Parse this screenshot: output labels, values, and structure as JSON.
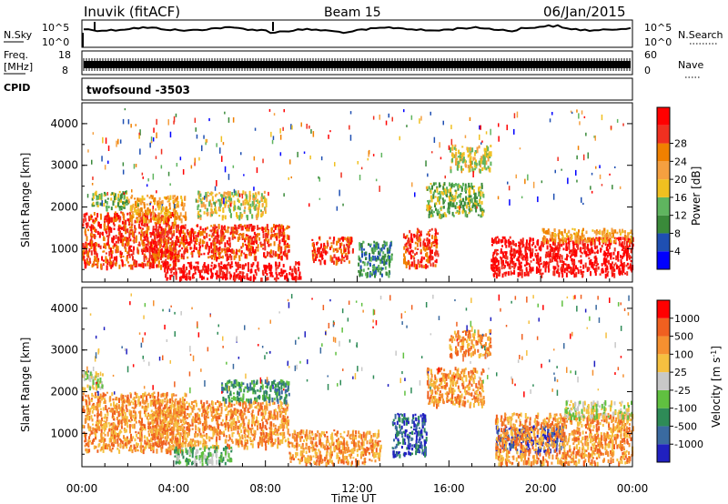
{
  "header": {
    "title": "Inuvik (fitACF)",
    "beam": "Beam 15",
    "date": "06/Jan/2015"
  },
  "noise_panel": {
    "left_label": "N.Sky",
    "right_label": "N.Search",
    "ticks": [
      "10^5",
      "10^0"
    ],
    "right_ticks": [
      "10^5",
      "10^0"
    ],
    "series_color": "#000000"
  },
  "freq_panel": {
    "left_label_top": "Freq.",
    "left_label_unit": "[MHz]",
    "left_ticks": [
      "18",
      "8"
    ],
    "right_label": "Nave",
    "right_ticks": [
      "60",
      "0"
    ]
  },
  "cpid_panel": {
    "left_label": "CPID",
    "value": "twofsound -3503"
  },
  "x_axis": {
    "label": "Time UT",
    "ticks": [
      "00:00",
      "04:00",
      "08:00",
      "12:00",
      "16:00",
      "20:00",
      "00:00"
    ]
  },
  "chart_data": [
    {
      "type": "heatmap",
      "name": "power",
      "ylabel": "Slant Range [km]",
      "yticks": [
        "1000",
        "2000",
        "3000",
        "4000"
      ],
      "ylim": [
        200,
        4500
      ],
      "colorbar_label": "Power [dB]",
      "colorbar_ticks": [
        "4",
        "8",
        "12",
        "16",
        "20",
        "24",
        "28"
      ],
      "colorbar_colors": [
        "#0000ff",
        "#1f4fb2",
        "#3a8a3a",
        "#5fb55f",
        "#f0c020",
        "#f5a040",
        "#f08000",
        "#f03020",
        "#ff0000"
      ],
      "regions": [
        {
          "t0": 0.0,
          "t1": 4.2,
          "r0": 600,
          "r1": 1900,
          "level": 7
        },
        {
          "t0": 0.4,
          "t1": 2.0,
          "r0": 2000,
          "r1": 2400,
          "level": 3
        },
        {
          "t0": 2.0,
          "t1": 4.5,
          "r0": 1700,
          "r1": 2300,
          "level": 5
        },
        {
          "t0": 3.0,
          "t1": 9.0,
          "r0": 800,
          "r1": 1600,
          "level": 7
        },
        {
          "t0": 3.5,
          "t1": 9.5,
          "r0": 300,
          "r1": 700,
          "level": 8
        },
        {
          "t0": 5.0,
          "t1": 8.0,
          "r0": 1800,
          "r1": 2400,
          "level": 4
        },
        {
          "t0": 10.0,
          "t1": 11.8,
          "r0": 700,
          "r1": 1300,
          "level": 7
        },
        {
          "t0": 12.0,
          "t1": 13.5,
          "r0": 400,
          "r1": 1200,
          "level": 2
        },
        {
          "t0": 14.0,
          "t1": 15.5,
          "r0": 600,
          "r1": 1500,
          "level": 7
        },
        {
          "t0": 15.0,
          "t1": 17.5,
          "r0": 1800,
          "r1": 2600,
          "level": 3
        },
        {
          "t0": 16.0,
          "t1": 17.8,
          "r0": 2900,
          "r1": 3500,
          "level": 4
        },
        {
          "t0": 17.8,
          "t1": 24.0,
          "r0": 400,
          "r1": 1300,
          "level": 8
        },
        {
          "t0": 20.0,
          "t1": 24.0,
          "r0": 1200,
          "r1": 1500,
          "level": 5
        }
      ]
    },
    {
      "type": "heatmap",
      "name": "velocity",
      "ylabel": "Slant Range [km]",
      "yticks": [
        "1000",
        "2000",
        "3000",
        "4000"
      ],
      "ylim": [
        200,
        4500
      ],
      "colorbar_label": "Velocity [m s^-1]",
      "colorbar_ticks": [
        "1000",
        "500",
        "100",
        "25",
        "-25",
        "-100",
        "-500",
        "-1000"
      ],
      "colorbar_colors": [
        "#2020c0",
        "#3a6aa0",
        "#2e8b57",
        "#60c040",
        "#c8c8c8",
        "#f5c040",
        "#f59030",
        "#f06020",
        "#ff0000"
      ],
      "regions": [
        {
          "t0": 0.0,
          "t1": 4.5,
          "r0": 600,
          "r1": 2000,
          "level": 6
        },
        {
          "t0": 0.0,
          "t1": 1.0,
          "r0": 2100,
          "r1": 2500,
          "level": 4
        },
        {
          "t0": 3.0,
          "t1": 9.0,
          "r0": 700,
          "r1": 1800,
          "level": 6
        },
        {
          "t0": 4.0,
          "t1": 6.5,
          "r0": 300,
          "r1": 700,
          "level": 3
        },
        {
          "t0": 6.0,
          "t1": 9.0,
          "r0": 1800,
          "r1": 2300,
          "level": 2
        },
        {
          "t0": 9.0,
          "t1": 13.0,
          "r0": 300,
          "r1": 1100,
          "level": 6
        },
        {
          "t0": 13.5,
          "t1": 15.0,
          "r0": 500,
          "r1": 1500,
          "level": 1
        },
        {
          "t0": 15.0,
          "t1": 17.5,
          "r0": 1700,
          "r1": 2600,
          "level": 6
        },
        {
          "t0": 16.0,
          "t1": 17.8,
          "r0": 2900,
          "r1": 3500,
          "level": 6
        },
        {
          "t0": 18.0,
          "t1": 21.0,
          "r0": 600,
          "r1": 1200,
          "level": 0
        },
        {
          "t0": 18.0,
          "t1": 24.0,
          "r0": 300,
          "r1": 1500,
          "level": 6
        },
        {
          "t0": 21.0,
          "t1": 24.0,
          "r0": 1400,
          "r1": 1800,
          "level": 4
        }
      ]
    }
  ]
}
